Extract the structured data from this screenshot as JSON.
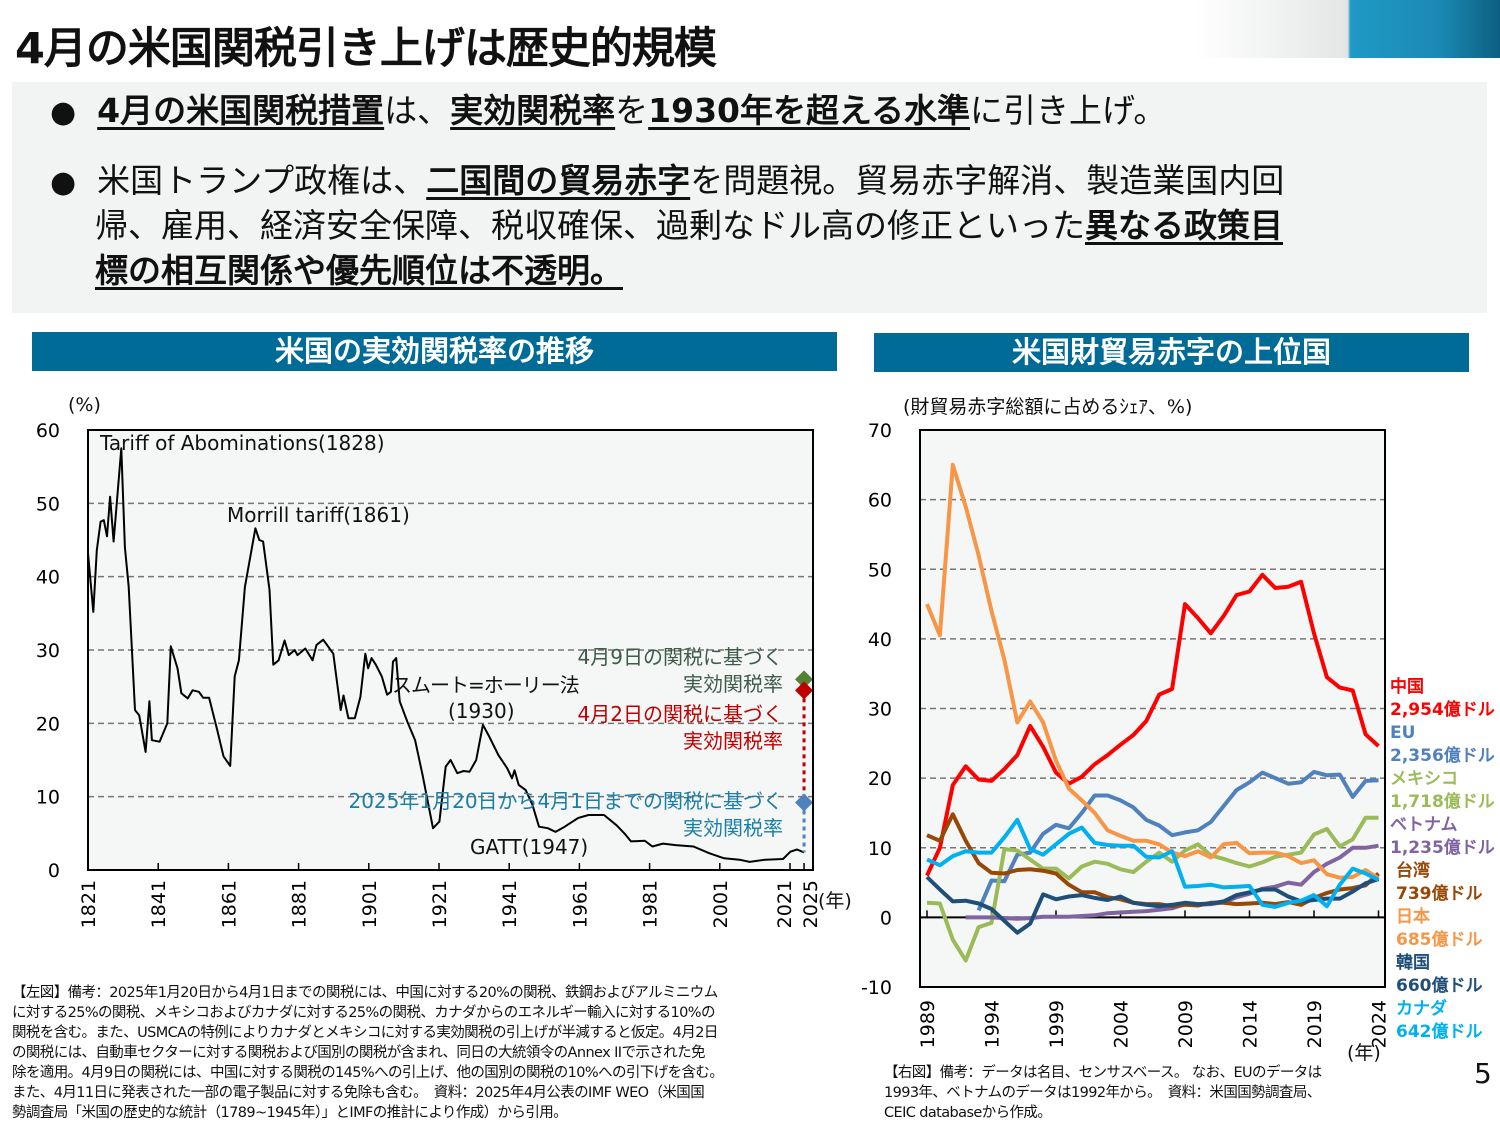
{
  "title": "4月の米国関税引き上げは歴史的規模",
  "summary": {
    "b1": [
      "4月の米国関税措置",
      "は、",
      "実効関税率",
      "を",
      "1930年を超える水準",
      "に引き上げ。"
    ],
    "b2_l1": [
      "米国トランプ政権は、",
      "二国間の貿易赤字",
      "を問題視。貿易赤字解消、製造業国内回"
    ],
    "b2_l2": [
      "帰、雇用、経済安全保障、税収確保、過剰なドル高の修正といった",
      "異なる政策目"
    ],
    "b2_l3": [
      "標の相互関係や優先順位は不透明",
      "。"
    ]
  },
  "left_panel": {
    "header": "米国の実効関税率の推移",
    "unit": "(%)",
    "year_unit": "(年)",
    "annotations": {
      "abominations": "Tariff of Abominations(1828)",
      "morrill": "Morrill tariff(1861)",
      "smoot1": "スムート=ホーリー法",
      "smoot2": "(1930)",
      "gatt": "GATT(1947)",
      "apr9_1": "4月9日の関税に基づく",
      "apr9_2": "実効関税率",
      "apr2_1": "4月2日の関税に基づく",
      "apr2_2": "実効関税率",
      "jan_1": "2025年1月20日から4月1日までの関税に基づく",
      "jan_2": "実効関税率"
    },
    "note": [
      "【左図】備考：2025年1月20日から4月1日までの関税には、中国に対する20%の関税、鉄鋼およびアルミニウム",
      "に対する25%の関税、メキシコおよびカナダに対する25%の関税、カナダからのエネルギー輸入に対する10%の",
      "関税を含む。また、USMCAの特例によりカナダとメキシコに対する実効関税の引上げが半減すると仮定。4月2日",
      "の関税には、自動車セクターに対する関税および国別の関税が含まれ、同日の大統領令のAnnex IIで示された免",
      "除を適用。4月9日の関税には、中国に対する関税の145%への引上げ、他の国別の関税の10%への引下げを含む。",
      "また、4月11日に発表された一部の電子製品に対する免除も含む。　資料：2025年4月公表のIMF WEO（米国国",
      "勢調査局「米国の歴史的な統計（1789~1945年）」とIMFの推計により作成）から引用。"
    ]
  },
  "right_panel": {
    "header": "米国財貿易赤字の上位国",
    "unit": "(財貿易赤字総額に占めるｼｪｱ、%)",
    "year_unit": "(年)",
    "legend": [
      {
        "name": "中国",
        "value": "2,954億ドル",
        "color": "#ff0000"
      },
      {
        "name": "EU",
        "value": "2,356億ドル",
        "color": "#4f81bd"
      },
      {
        "name": "メキシコ",
        "value": "1,718億ドル",
        "color": "#9bbb59"
      },
      {
        "name": "ベトナム",
        "value": "1,235億ドル",
        "color": "#8064a2"
      },
      {
        "name": "台湾",
        "value": "739億ドル",
        "color": "#974706"
      },
      {
        "name": "日本",
        "value": "685億ドル",
        "color": "#f79646"
      },
      {
        "name": "韓国",
        "value": "660億ドル",
        "color": "#1f4e79"
      },
      {
        "name": "カナダ",
        "value": "642億ドル",
        "color": "#00b0f0"
      }
    ],
    "note": [
      "【右図】備考：データは名目、センサスベース。 なお、EUのデータは",
      "1993年、ベトナムのデータは1992年から。　資料：米国国勢調査局、",
      "CEIC databaseから作成。"
    ]
  },
  "page_number": "5",
  "chart_data": [
    {
      "type": "line",
      "title": "米国の実効関税率の推移",
      "ylabel": "(%)",
      "xlabel": "(年)",
      "ylim": [
        0,
        60
      ],
      "yticks": [
        0,
        10,
        20,
        30,
        40,
        50,
        60
      ],
      "xticks": [
        1821,
        1841,
        1861,
        1881,
        1901,
        1921,
        1941,
        1961,
        1981,
        2001,
        2021,
        2025
      ],
      "grid": true,
      "series": [
        {
          "color": "#000000",
          "points": [
            [
              1821,
              43.2
            ],
            [
              1822.5,
              35.2
            ],
            [
              1823.5,
              43.6
            ],
            [
              1824.6,
              47.5
            ],
            [
              1825.5,
              47.7
            ],
            [
              1826.4,
              45.5
            ],
            [
              1827.3,
              50.9
            ],
            [
              1828.3,
              44.8
            ],
            [
              1830.5,
              57.5
            ],
            [
              1831.5,
              44
            ],
            [
              1832.6,
              38.6
            ],
            [
              1834.4,
              21.8
            ],
            [
              1835.6,
              21.1
            ],
            [
              1837.4,
              16.1
            ],
            [
              1838.5,
              23
            ],
            [
              1839.2,
              17.7
            ],
            [
              1841.4,
              17.5
            ],
            [
              1843.6,
              20
            ],
            [
              1844.6,
              30.5
            ],
            [
              1846.5,
              27.5
            ],
            [
              1847.6,
              24.1
            ],
            [
              1849.4,
              23.4
            ],
            [
              1850.8,
              24.5
            ],
            [
              1852.6,
              24.3
            ],
            [
              1853.8,
              23.5
            ],
            [
              1855.5,
              23.5
            ],
            [
              1857.8,
              19.1
            ],
            [
              1859.6,
              15.5
            ],
            [
              1861.5,
              14.2
            ],
            [
              1862.8,
              26.4
            ],
            [
              1864,
              28.6
            ],
            [
              1865.7,
              38.6
            ],
            [
              1868.7,
              46.6
            ],
            [
              1869.8,
              45
            ],
            [
              1870.9,
              44.8
            ],
            [
              1872.7,
              38.2
            ],
            [
              1873.8,
              28
            ],
            [
              1875.3,
              28.6
            ],
            [
              1877,
              31.3
            ],
            [
              1878.2,
              29.3
            ],
            [
              1879.9,
              30
            ],
            [
              1880.7,
              29.3
            ],
            [
              1882.9,
              30.2
            ],
            [
              1885,
              28.6
            ],
            [
              1886.1,
              30.7
            ],
            [
              1888,
              31.4
            ],
            [
              1890.9,
              29.5
            ],
            [
              1893,
              21.8
            ],
            [
              1893.8,
              23.8
            ],
            [
              1895.2,
              20.7
            ],
            [
              1897,
              20.7
            ],
            [
              1898.6,
              23.6
            ],
            [
              1900,
              29.5
            ],
            [
              1900.8,
              27.5
            ],
            [
              1901.8,
              28.9
            ],
            [
              1903,
              28
            ],
            [
              1904.7,
              26.4
            ],
            [
              1906.2,
              23.9
            ],
            [
              1907.3,
              24.3
            ],
            [
              1907.9,
              28.4
            ],
            [
              1908.8,
              28.9
            ],
            [
              1909.8,
              23
            ],
            [
              1912,
              20.2
            ],
            [
              1914.2,
              17.7
            ],
            [
              1916.3,
              13
            ],
            [
              1919.3,
              5.7
            ],
            [
              1921.1,
              6.6
            ],
            [
              1922.9,
              14.1
            ],
            [
              1924.3,
              15
            ],
            [
              1926.2,
              13.2
            ],
            [
              1928,
              13.5
            ],
            [
              1929.7,
              13.4
            ],
            [
              1931.6,
              15
            ],
            [
              1933.5,
              19.8
            ],
            [
              1935.3,
              18.2
            ],
            [
              1937.9,
              15.7
            ],
            [
              1940.4,
              13.9
            ],
            [
              1941.8,
              12.5
            ],
            [
              1942.5,
              13.6
            ],
            [
              1943.7,
              11.6
            ],
            [
              1945.7,
              10.9
            ],
            [
              1947.6,
              8.9
            ],
            [
              1949.5,
              5.9
            ],
            [
              1952,
              5.7
            ],
            [
              1954.2,
              5.2
            ],
            [
              1956.8,
              5.9
            ],
            [
              1960.7,
              7.1
            ],
            [
              1963.6,
              7.5
            ],
            [
              1968,
              7.5
            ],
            [
              1971.6,
              6.1
            ],
            [
              1973.8,
              5
            ],
            [
              1975.7,
              3.9
            ],
            [
              1979.6,
              4
            ],
            [
              1981.8,
              3.2
            ],
            [
              1984.8,
              3.6
            ],
            [
              1988.4,
              3.4
            ],
            [
              1993.5,
              3.2
            ],
            [
              1997.9,
              2.3
            ],
            [
              2002.2,
              1.6
            ],
            [
              2006.6,
              1.4
            ],
            [
              2009.5,
              1.1
            ],
            [
              2013.9,
              1.4
            ],
            [
              2019,
              1.5
            ],
            [
              2021.1,
              2.5
            ],
            [
              2023,
              2.8
            ],
            [
              2025,
              2.4
            ]
          ]
        }
      ],
      "markers": [
        {
          "label": "4月9日の関税に基づく実効関税率",
          "x": 2025,
          "y": 26,
          "color": "#548235"
        },
        {
          "label": "4月2日の関税に基づく実効関税率",
          "x": 2025,
          "y": 24.5,
          "color": "#c00000"
        },
        {
          "label": "2025年1月20日から4月1日までの関税に基づく実効関税率",
          "x": 2025,
          "y": 9.2,
          "color": "#4f81bd"
        }
      ]
    },
    {
      "type": "line",
      "title": "米国財貿易赤字の上位国",
      "ylabel": "(財貿易赤字総額に占めるｼｪｱ、%)",
      "xlabel": "(年)",
      "ylim": [
        -10,
        70
      ],
      "yticks": [
        -10,
        0,
        10,
        20,
        30,
        40,
        50,
        60,
        70
      ],
      "xticks": [
        1989,
        1994,
        1999,
        2004,
        2009,
        2014,
        2019,
        2024
      ],
      "grid": true,
      "legend": "right",
      "series": [
        {
          "name": "中国",
          "color": "#ff0000",
          "start": 1989,
          "values": [
            6,
            10,
            19,
            21.7,
            19.8,
            19.6,
            21.3,
            23.3,
            27.5,
            24.5,
            20.8,
            19.2,
            20.2,
            22,
            23.3,
            24.8,
            26.2,
            28.2,
            32,
            32.8,
            45,
            43,
            40.8,
            43.3,
            46.3,
            46.8,
            49.2,
            47.3,
            47.5,
            48.2,
            40.8,
            34.5,
            33,
            32.6,
            26.3,
            24.6
          ]
        },
        {
          "name": "EU",
          "color": "#4f81bd",
          "start": 1993,
          "values": [
            1,
            5.3,
            5.2,
            9,
            9.3,
            12,
            13.3,
            12.8,
            15,
            17.5,
            17.5,
            16.8,
            15.8,
            14,
            13.2,
            11.8,
            12.2,
            12.5,
            13.7,
            16,
            18.3,
            19.4,
            20.8,
            20,
            19.2,
            19.4,
            20.9,
            20.4,
            20.5,
            17.3,
            19.6,
            19.7
          ]
        },
        {
          "name": "メキシコ",
          "color": "#9bbb59",
          "start": 1989,
          "values": [
            2.1,
            2,
            -3.2,
            -6.2,
            -1.4,
            -0.8,
            9.8,
            9.6,
            8.3,
            7,
            7,
            5.6,
            7.3,
            8,
            7.7,
            6.9,
            6.5,
            8,
            9.3,
            8,
            9.6,
            10.5,
            8.9,
            8.4,
            7.8,
            7.3,
            7.9,
            8.7,
            9,
            9.3,
            11.9,
            12.7,
            10.2,
            11.2,
            14.3,
            14.3
          ]
        },
        {
          "name": "ベトナム",
          "color": "#8064a2",
          "start": 1992,
          "values": [
            0,
            0,
            0,
            -0.1,
            -0.2,
            -0.1,
            0.1,
            0.1,
            0.1,
            0.2,
            0.3,
            0.6,
            0.7,
            0.8,
            0.9,
            1.1,
            1.3,
            1.9,
            1.8,
            1.9,
            2.2,
            2.9,
            3.4,
            4.1,
            4.4,
            5,
            4.7,
            6.5,
            7.7,
            8.6,
            10,
            10,
            10.3
          ]
        },
        {
          "name": "台湾",
          "color": "#974706",
          "start": 1989,
          "values": [
            11.8,
            11,
            14.8,
            11,
            7.8,
            6.4,
            6.3,
            6.8,
            6.9,
            6.7,
            6.3,
            4.7,
            3.6,
            3.6,
            2.9,
            2.6,
            2.1,
            1.9,
            1.9,
            1.6,
            1.8,
            1.7,
            2.1,
            2.1,
            1.9,
            2,
            2.1,
            1.9,
            2.2,
            1.8,
            2.8,
            3.5,
            4,
            4.2,
            4.6,
            6.3
          ]
        },
        {
          "name": "日本",
          "color": "#f79646",
          "start": 1989,
          "values": [
            45,
            40.5,
            65,
            59,
            52,
            44,
            37,
            28,
            31,
            28,
            22.5,
            18.5,
            16.8,
            15,
            12.5,
            11.7,
            11,
            11,
            10.5,
            9.3,
            8.8,
            9.5,
            8.6,
            10.5,
            10.7,
            9.2,
            9.3,
            9.3,
            8.8,
            7.8,
            8.2,
            6.2,
            5.7,
            5.8,
            6.8,
            5.6
          ]
        },
        {
          "name": "韓国",
          "color": "#1f4e79",
          "start": 1989,
          "values": [
            5.8,
            4,
            2.3,
            2.4,
            2,
            1.2,
            -0.5,
            -2.2,
            -0.9,
            3.3,
            2.6,
            3,
            3.2,
            2.8,
            2.5,
            3,
            2.1,
            1.8,
            1.6,
            1.8,
            2.1,
            1.9,
            2,
            2.3,
            3.2,
            3.6,
            4,
            4,
            3,
            2.3,
            2.5,
            2.7,
            2.7,
            3.7,
            4.9,
            5.5
          ]
        },
        {
          "name": "カナダ",
          "color": "#00b0f0",
          "start": 1989,
          "values": [
            8.3,
            7.5,
            8.8,
            9.5,
            9.3,
            9.3,
            11.5,
            14,
            9.8,
            9,
            10.5,
            12,
            12.9,
            10.7,
            10.4,
            10.3,
            10.3,
            8.7,
            8.6,
            9.5,
            4.4,
            4.5,
            4.7,
            4.3,
            4.4,
            4.5,
            1.8,
            1.5,
            2.1,
            2.4,
            3.2,
            1.6,
            4.7,
            7,
            6.3,
            5.4
          ]
        }
      ]
    }
  ]
}
